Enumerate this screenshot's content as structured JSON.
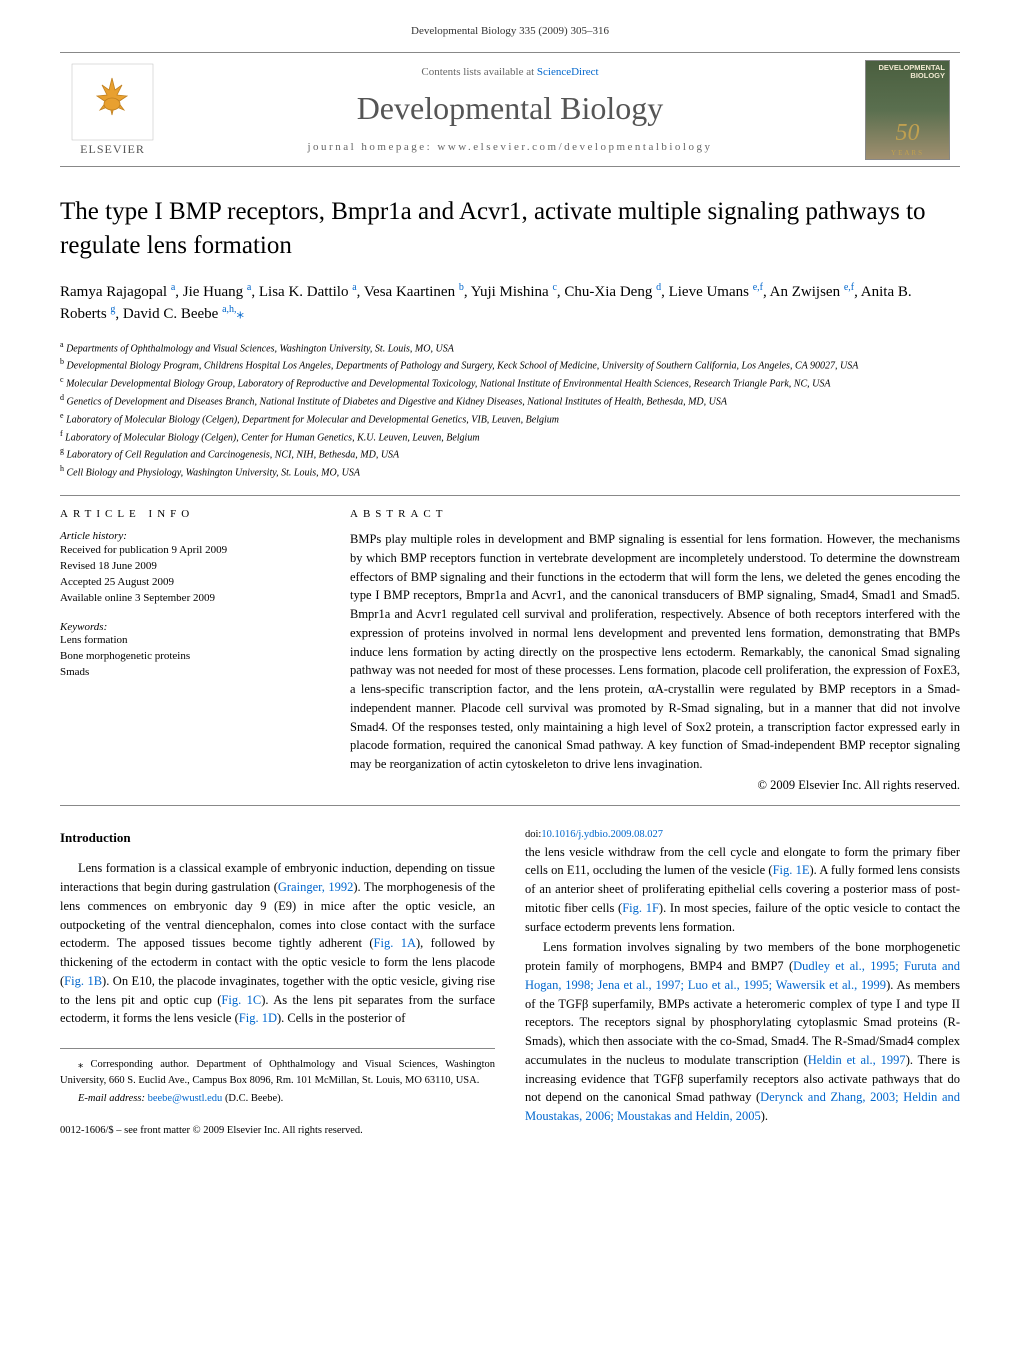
{
  "page_header": "Developmental Biology 335 (2009) 305–316",
  "contents_line_prefix": "Contents lists available at ",
  "contents_line_link": "ScienceDirect",
  "journal_name": "Developmental Biology",
  "journal_homepage": "journal homepage: www.elsevier.com/developmentalbiology",
  "cover_years": "YEARS",
  "title": "The type I BMP receptors, Bmpr1a and Acvr1, activate multiple signaling pathways to regulate lens formation",
  "authors_html": "Ramya Rajagopal <sup>a</sup>, Jie Huang <sup>a</sup>, Lisa K. Dattilo <sup>a</sup>, Vesa Kaartinen <sup>b</sup>, Yuji Mishina <sup>c</sup>, Chu-Xia Deng <sup>d</sup>, Lieve Umans <sup>e,f</sup>, An Zwijsen <sup>e,f</sup>, Anita B. Roberts <sup>g</sup>, David C. Beebe <sup>a,h,</sup><span class='aff-star'>⁎</span>",
  "affiliations": [
    {
      "sup": "a",
      "text": "Departments of Ophthalmology and Visual Sciences, Washington University, St. Louis, MO, USA"
    },
    {
      "sup": "b",
      "text": "Developmental Biology Program, Childrens Hospital Los Angeles, Departments of Pathology and Surgery, Keck School of Medicine, University of Southern California, Los Angeles, CA 90027, USA"
    },
    {
      "sup": "c",
      "text": "Molecular Developmental Biology Group, Laboratory of Reproductive and Developmental Toxicology, National Institute of Environmental Health Sciences, Research Triangle Park, NC, USA"
    },
    {
      "sup": "d",
      "text": "Genetics of Development and Diseases Branch, National Institute of Diabetes and Digestive and Kidney Diseases, National Institutes of Health, Bethesda, MD, USA"
    },
    {
      "sup": "e",
      "text": "Laboratory of Molecular Biology (Celgen), Department for Molecular and Developmental Genetics, VIB, Leuven, Belgium"
    },
    {
      "sup": "f",
      "text": "Laboratory of Molecular Biology (Celgen), Center for Human Genetics, K.U. Leuven, Leuven, Belgium"
    },
    {
      "sup": "g",
      "text": "Laboratory of Cell Regulation and Carcinogenesis, NCI, NIH, Bethesda, MD, USA"
    },
    {
      "sup": "h",
      "text": "Cell Biology and Physiology, Washington University, St. Louis, MO, USA"
    }
  ],
  "section_heads": {
    "article_info": "ARTICLE INFO",
    "abstract": "ABSTRACT",
    "introduction": "Introduction"
  },
  "history": {
    "label": "Article history:",
    "received": "Received for publication 9 April 2009",
    "revised": "Revised 18 June 2009",
    "accepted": "Accepted 25 August 2009",
    "online": "Available online 3 September 2009"
  },
  "keywords": {
    "label": "Keywords:",
    "items": [
      "Lens formation",
      "Bone morphogenetic proteins",
      "Smads"
    ]
  },
  "abstract_text": "BMPs play multiple roles in development and BMP signaling is essential for lens formation. However, the mechanisms by which BMP receptors function in vertebrate development are incompletely understood. To determine the downstream effectors of BMP signaling and their functions in the ectoderm that will form the lens, we deleted the genes encoding the type I BMP receptors, Bmpr1a and Acvr1, and the canonical transducers of BMP signaling, Smad4, Smad1 and Smad5. Bmpr1a and Acvr1 regulated cell survival and proliferation, respectively. Absence of both receptors interfered with the expression of proteins involved in normal lens development and prevented lens formation, demonstrating that BMPs induce lens formation by acting directly on the prospective lens ectoderm. Remarkably, the canonical Smad signaling pathway was not needed for most of these processes. Lens formation, placode cell proliferation, the expression of FoxE3, a lens-specific transcription factor, and the lens protein, αA-crystallin were regulated by BMP receptors in a Smad-independent manner. Placode cell survival was promoted by R-Smad signaling, but in a manner that did not involve Smad4. Of the responses tested, only maintaining a high level of Sox2 protein, a transcription factor expressed early in placode formation, required the canonical Smad pathway. A key function of Smad-independent BMP receptor signaling may be reorganization of actin cytoskeleton to drive lens invagination.",
  "copyright": "© 2009 Elsevier Inc. All rights reserved.",
  "intro_p1": "Lens formation is a classical example of embryonic induction, depending on tissue interactions that begin during gastrulation (Grainger, 1992). The morphogenesis of the lens commences on embryonic day 9 (E9) in mice after the optic vesicle, an outpocketing of the ventral diencephalon, comes into close contact with the surface ectoderm. The apposed tissues become tightly adherent (Fig. 1A), followed by thickening of the ectoderm in contact with the optic vesicle to form the lens placode (Fig. 1B). On E10, the placode invaginates, together with the optic vesicle, giving rise to the lens pit and optic cup (Fig. 1C). As the lens pit separates from the surface ectoderm, it forms the lens vesicle (Fig. 1D). Cells in the posterior of",
  "intro_p2": "the lens vesicle withdraw from the cell cycle and elongate to form the primary fiber cells on E11, occluding the lumen of the vesicle (Fig. 1E). A fully formed lens consists of an anterior sheet of proliferating epithelial cells covering a posterior mass of post-mitotic fiber cells (Fig. 1F). In most species, failure of the optic vesicle to contact the surface ectoderm prevents lens formation.",
  "intro_p3": "Lens formation involves signaling by two members of the bone morphogenetic protein family of morphogens, BMP4 and BMP7 (Dudley et al., 1995; Furuta and Hogan, 1998; Jena et al., 1997; Luo et al., 1995; Wawersik et al., 1999). As members of the TGFβ superfamily, BMPs activate a heteromeric complex of type I and type II receptors. The receptors signal by phosphorylating cytoplasmic Smad proteins (R-Smads), which then associate with the co-Smad, Smad4. The R-Smad/Smad4 complex accumulates in the nucleus to modulate transcription (Heldin et al., 1997). There is increasing evidence that TGFβ superfamily receptors also activate pathways that do not depend on the canonical Smad pathway (Derynck and Zhang, 2003; Heldin and Moustakas, 2006; Moustakas and Heldin, 2005).",
  "footnote": {
    "corresponding": "⁎ Corresponding author. Department of Ophthalmology and Visual Sciences, Washington University, 660 S. Euclid Ave., Campus Box 8096, Rm. 101 McMillan, St. Louis, MO 63110, USA.",
    "email_label": "E-mail address: ",
    "email": "beebe@wustl.edu",
    "email_suffix": " (D.C. Beebe)."
  },
  "doi_block": {
    "line1": "0012-1606/$ – see front matter © 2009 Elsevier Inc. All rights reserved.",
    "doi_prefix": "doi:",
    "doi": "10.1016/j.ydbio.2009.08.027"
  },
  "elsevier_label": "ELSEVIER",
  "colors": {
    "link": "#0066cc",
    "text": "#000000",
    "border": "#888888",
    "header_text": "#666666"
  }
}
